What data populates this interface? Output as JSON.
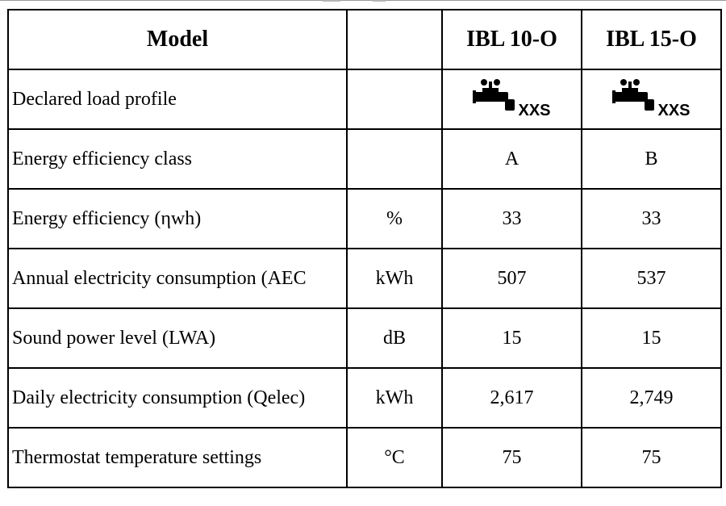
{
  "table": {
    "header": {
      "model_label": "Model",
      "unit_label": "",
      "models": [
        "IBL 10-O",
        "IBL 15-O"
      ]
    },
    "load_profile": {
      "label": "Declared load profile",
      "icon": "tap-icon",
      "profile": "XXS"
    },
    "rows": [
      {
        "label": "Energy efficiency class",
        "unit": "",
        "values": [
          "A",
          "B"
        ]
      },
      {
        "label": "Energy efficiency (ηwh)",
        "unit": "%",
        "values": [
          "33",
          "33"
        ]
      },
      {
        "label": "Annual electricity consumption (AEC",
        "unit": "kWh",
        "values": [
          "507",
          "537"
        ]
      },
      {
        "label": "Sound power level (LWA)",
        "unit": "dB",
        "values": [
          "15",
          "15"
        ]
      },
      {
        "label": "Daily electricity consumption (Qelec)",
        "unit": "kWh",
        "values": [
          "2,617",
          "2,749"
        ]
      },
      {
        "label": "Thermostat temperature settings",
        "unit": "°C",
        "values": [
          "75",
          "75"
        ]
      }
    ]
  }
}
